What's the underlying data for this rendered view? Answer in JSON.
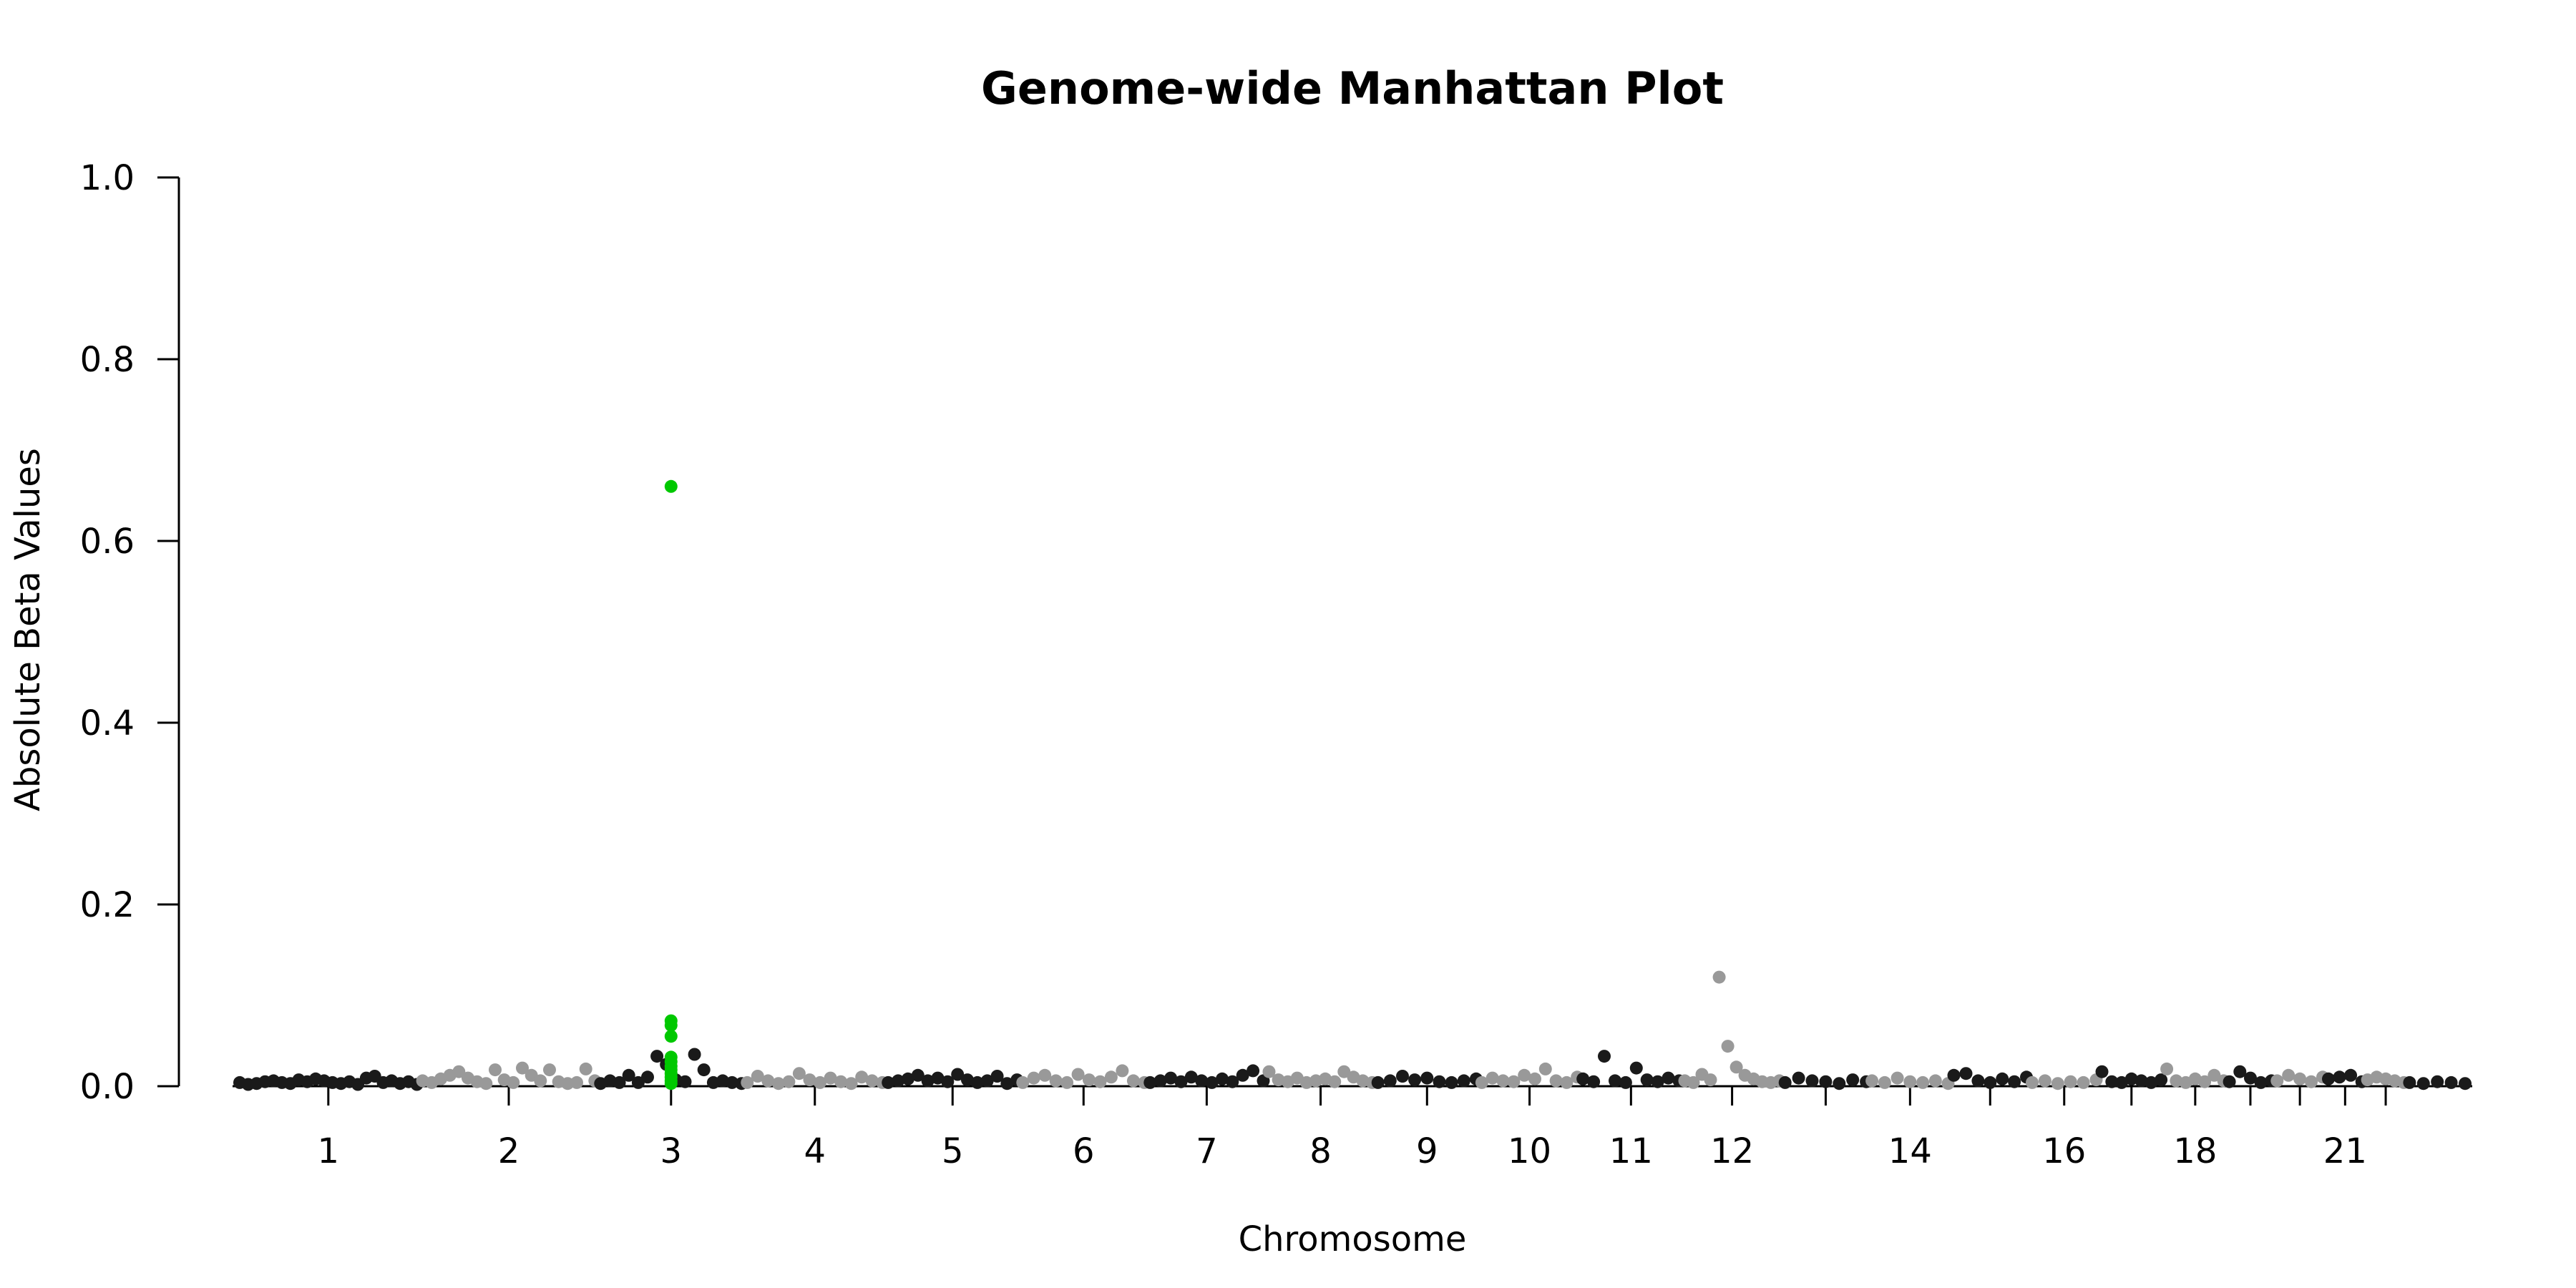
{
  "chart_data": {
    "type": "scatter",
    "title": "Genome-wide Manhattan Plot",
    "xlabel": "Chromosome",
    "ylabel": "Absolute Beta Values",
    "ylim": [
      0,
      1.0
    ],
    "yticks": [
      "0.0",
      "0.2",
      "0.4",
      "0.6",
      "0.8",
      "1.0"
    ],
    "grid": false,
    "legend": "none",
    "colors": {
      "odd": "#1a1a1a",
      "even": "#999999",
      "highlight": "#00c800"
    },
    "chromosomes": [
      {
        "chr": 1,
        "label": "1",
        "points": [
          0.004,
          0.002,
          0.003,
          0.005,
          0.006,
          0.004,
          0.003,
          0.007,
          0.005,
          0.008,
          0.006,
          0.004,
          0.003,
          0.005,
          0.002,
          0.009,
          0.011,
          0.004,
          0.006,
          0.003,
          0.005,
          0.002
        ]
      },
      {
        "chr": 2,
        "label": "2",
        "points": [
          0.006,
          0.004,
          0.008,
          0.012,
          0.016,
          0.009,
          0.005,
          0.003,
          0.018,
          0.007,
          0.004,
          0.02,
          0.012,
          0.006,
          0.018,
          0.005,
          0.003,
          0.004,
          0.019,
          0.006
        ]
      },
      {
        "chr": 3,
        "label": "3",
        "points": [
          0.003,
          0.006,
          0.004,
          0.012,
          0.004,
          0.01,
          0.033,
          0.024,
          0.007,
          0.005,
          0.035,
          0.018,
          0.004,
          0.006,
          0.004,
          0.003
        ],
        "highlight": [
          0.66,
          0.072,
          0.067,
          0.055,
          0.032,
          0.027,
          0.022,
          0.018,
          0.014,
          0.01,
          0.006,
          0.003
        ]
      },
      {
        "chr": 4,
        "label": "4",
        "points": [
          0.004,
          0.011,
          0.006,
          0.003,
          0.005,
          0.014,
          0.007,
          0.004,
          0.009,
          0.005,
          0.003,
          0.01,
          0.006,
          0.004
        ]
      },
      {
        "chr": 5,
        "label": "5",
        "points": [
          0.004,
          0.006,
          0.008,
          0.012,
          0.006,
          0.009,
          0.005,
          0.013,
          0.007,
          0.004,
          0.006,
          0.011,
          0.003,
          0.007
        ]
      },
      {
        "chr": 6,
        "label": "6",
        "points": [
          0.004,
          0.009,
          0.012,
          0.006,
          0.004,
          0.013,
          0.007,
          0.005,
          0.01,
          0.017,
          0.006,
          0.004
        ]
      },
      {
        "chr": 7,
        "label": "7",
        "points": [
          0.004,
          0.006,
          0.009,
          0.005,
          0.01,
          0.006,
          0.004,
          0.008,
          0.005,
          0.012,
          0.017,
          0.006
        ]
      },
      {
        "chr": 8,
        "label": "8",
        "points": [
          0.016,
          0.007,
          0.005,
          0.009,
          0.004,
          0.006,
          0.008,
          0.005,
          0.016,
          0.01,
          0.006,
          0.004
        ]
      },
      {
        "chr": 9,
        "label": "9",
        "points": [
          0.004,
          0.006,
          0.011,
          0.007,
          0.009,
          0.005,
          0.004,
          0.006,
          0.008
        ]
      },
      {
        "chr": 10,
        "label": "10",
        "points": [
          0.004,
          0.009,
          0.006,
          0.005,
          0.012,
          0.008,
          0.019,
          0.006,
          0.004,
          0.01
        ]
      },
      {
        "chr": 11,
        "label": "11",
        "points": [
          0.008,
          0.005,
          0.033,
          0.006,
          0.004,
          0.02,
          0.007,
          0.005,
          0.009,
          0.006
        ]
      },
      {
        "chr": 12,
        "label": "12",
        "points": [
          0.006,
          0.004,
          0.013,
          0.007,
          0.12,
          0.044,
          0.021,
          0.012,
          0.008,
          0.005,
          0.004,
          0.006
        ]
      },
      {
        "chr": 13,
        "label": "",
        "points": [
          0.004,
          0.009,
          0.006,
          0.005,
          0.003,
          0.007,
          0.005
        ]
      },
      {
        "chr": 14,
        "label": "14",
        "points": [
          0.006,
          0.004,
          0.009,
          0.005,
          0.004,
          0.006,
          0.003
        ]
      },
      {
        "chr": 15,
        "label": "",
        "points": [
          0.012,
          0.014,
          0.006,
          0.004,
          0.008,
          0.005,
          0.01
        ]
      },
      {
        "chr": 16,
        "label": "16",
        "points": [
          0.004,
          0.006,
          0.003,
          0.005,
          0.004,
          0.007
        ]
      },
      {
        "chr": 17,
        "label": "",
        "points": [
          0.016,
          0.005,
          0.004,
          0.008,
          0.006,
          0.004,
          0.007
        ]
      },
      {
        "chr": 18,
        "label": "18",
        "points": [
          0.019,
          0.006,
          0.004,
          0.008,
          0.005,
          0.012,
          0.006
        ]
      },
      {
        "chr": 19,
        "label": "",
        "points": [
          0.005,
          0.016,
          0.009,
          0.004,
          0.006
        ]
      },
      {
        "chr": 20,
        "label": "",
        "points": [
          0.006,
          0.012,
          0.008,
          0.005,
          0.01
        ]
      },
      {
        "chr": 21,
        "label": "21",
        "points": [
          0.008,
          0.01,
          0.012,
          0.005
        ]
      },
      {
        "chr": 22,
        "label": "",
        "points": [
          0.007,
          0.01,
          0.008,
          0.006,
          0.004
        ]
      },
      {
        "chr": 23,
        "label": "",
        "points": [
          0.004,
          0.003,
          0.005,
          0.004,
          0.003
        ]
      }
    ]
  }
}
